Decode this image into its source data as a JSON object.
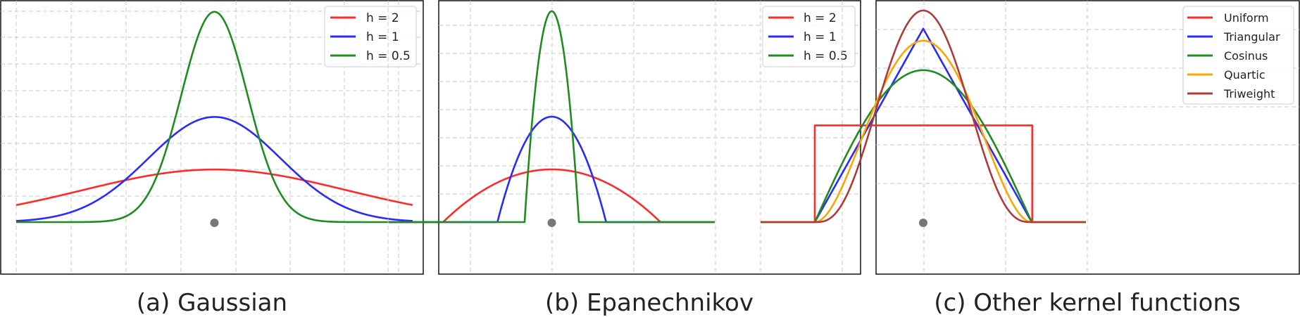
{
  "figure": {
    "panels": [
      {
        "id": "gaussian",
        "caption": "(a) Gaussian",
        "legend_position": "top-right",
        "grid": true,
        "center_marker_color": "#777777",
        "series": [
          {
            "name": "h = 2",
            "color": "#ff2a2a",
            "bandwidth": 2
          },
          {
            "name": "h = 1",
            "color": "#2a2aff",
            "bandwidth": 1
          },
          {
            "name": "h = 0.5",
            "color": "#1e8c1e",
            "bandwidth": 0.5
          }
        ]
      },
      {
        "id": "epanechnikov",
        "caption": "(b) Epanechnikov",
        "legend_position": "top-right",
        "grid": true,
        "center_marker_color": "#777777",
        "series": [
          {
            "name": "h = 2",
            "color": "#ff2a2a",
            "bandwidth": 2
          },
          {
            "name": "h = 1",
            "color": "#2a2aff",
            "bandwidth": 1
          },
          {
            "name": "h = 0.5",
            "color": "#1e8c1e",
            "bandwidth": 0.5
          }
        ]
      },
      {
        "id": "other",
        "caption": "(c) Other kernel functions",
        "legend_position": "top-right",
        "grid": true,
        "center_marker_color": "#777777",
        "series": [
          {
            "name": "Uniform",
            "color": "#ff2a2a",
            "kernel": "uniform"
          },
          {
            "name": "Triangular",
            "color": "#2a2aff",
            "kernel": "triangular"
          },
          {
            "name": "Cosinus",
            "color": "#1e8c1e",
            "kernel": "cosine"
          },
          {
            "name": "Quartic",
            "color": "#ffa500",
            "kernel": "quartic"
          },
          {
            "name": "Triweight",
            "color": "#b03a3a",
            "kernel": "triweight"
          }
        ]
      }
    ]
  },
  "chart_data": [
    {
      "type": "line",
      "title": "",
      "xlabel": "",
      "ylabel": "",
      "xlim": [
        -3,
        3
      ],
      "ylim": [
        0,
        0.8
      ],
      "grid": true,
      "legend": "top-right",
      "series": [
        {
          "name": "h = 2",
          "peak": 0.199
        },
        {
          "name": "h = 1",
          "peak": 0.399
        },
        {
          "name": "h = 0.5",
          "peak": 0.798
        }
      ]
    },
    {
      "type": "line",
      "title": "",
      "xlabel": "",
      "ylabel": "",
      "xlim": [
        -3,
        3
      ],
      "ylim": [
        0,
        1.5
      ],
      "grid": true,
      "legend": "top-right",
      "series": [
        {
          "name": "h = 2",
          "peak": 0.375,
          "support": [
            -2,
            2
          ]
        },
        {
          "name": "h = 1",
          "peak": 0.75,
          "support": [
            -1,
            1
          ]
        },
        {
          "name": "h = 0.5",
          "peak": 1.5,
          "support": [
            -0.5,
            0.5
          ]
        }
      ]
    },
    {
      "type": "line",
      "title": "",
      "xlabel": "",
      "ylabel": "",
      "xlim": [
        -1.5,
        1.5
      ],
      "ylim": [
        0,
        1.09
      ],
      "grid": true,
      "legend": "top-right",
      "series": [
        {
          "name": "Uniform",
          "peak": 0.5,
          "support": [
            -1,
            1
          ]
        },
        {
          "name": "Triangular",
          "peak": 1.0,
          "support": [
            -1,
            1
          ]
        },
        {
          "name": "Cosinus",
          "peak": 0.785,
          "support": [
            -1,
            1
          ]
        },
        {
          "name": "Quartic",
          "peak": 0.9375,
          "support": [
            -1,
            1
          ]
        },
        {
          "name": "Triweight",
          "peak": 1.094,
          "support": [
            -1,
            1
          ]
        }
      ]
    }
  ]
}
